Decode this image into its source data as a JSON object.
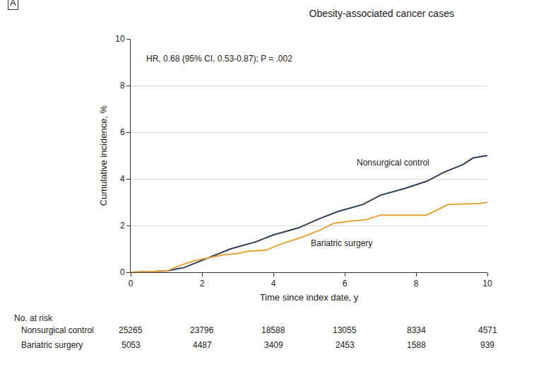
{
  "chart_data": {
    "type": "line",
    "panel_label": "A",
    "title": "Obesity-associated cancer cases",
    "annotations": [
      "HR, 0.68 (95% CI, 0.53-0.87); P = .002"
    ],
    "x_label": "Time since index date, y",
    "y_label": "Cumulative incidence, %",
    "xlim": [
      0,
      10
    ],
    "xticks": [
      0,
      2,
      4,
      6,
      8,
      10
    ],
    "ylim": [
      0,
      10
    ],
    "yticks": [
      0,
      2,
      4,
      6,
      8,
      10
    ],
    "grid": true,
    "series": [
      {
        "name": "Nonsurgical control",
        "color": "#2e3f55",
        "x": [
          0,
          1,
          1.5,
          2,
          2.8,
          3.5,
          4,
          4.7,
          5.3,
          5.8,
          6.5,
          7,
          7.7,
          8.3,
          8.8,
          9.3,
          9.6,
          10
        ],
        "values": [
          0,
          0.05,
          0.2,
          0.5,
          1.0,
          1.3,
          1.6,
          1.9,
          2.3,
          2.6,
          2.9,
          3.3,
          3.6,
          3.9,
          4.3,
          4.6,
          4.9,
          5.0
        ]
      },
      {
        "name": "Bariatric surgery",
        "color": "#e8a33a",
        "x": [
          0,
          1,
          1.4,
          1.8,
          2.3,
          2.6,
          3,
          3.3,
          3.8,
          4.2,
          4.8,
          5.3,
          5.7,
          6.2,
          6.6,
          7,
          8.3,
          8.5,
          8.9,
          9.8,
          10
        ],
        "values": [
          0,
          0.05,
          0.3,
          0.5,
          0.65,
          0.75,
          0.8,
          0.9,
          0.95,
          1.2,
          1.5,
          1.8,
          2.1,
          2.2,
          2.25,
          2.45,
          2.45,
          2.6,
          2.9,
          2.95,
          3.0
        ]
      }
    ],
    "risk_table": {
      "title": "No. at risk",
      "times": [
        0,
        2,
        4,
        6,
        8,
        10
      ],
      "rows": [
        {
          "name": "Nonsurgical control",
          "values": [
            25265,
            23796,
            18588,
            13055,
            8334,
            4571
          ]
        },
        {
          "name": "Bariatric surgery",
          "values": [
            5053,
            4487,
            3409,
            2453,
            1588,
            939
          ]
        }
      ]
    }
  }
}
